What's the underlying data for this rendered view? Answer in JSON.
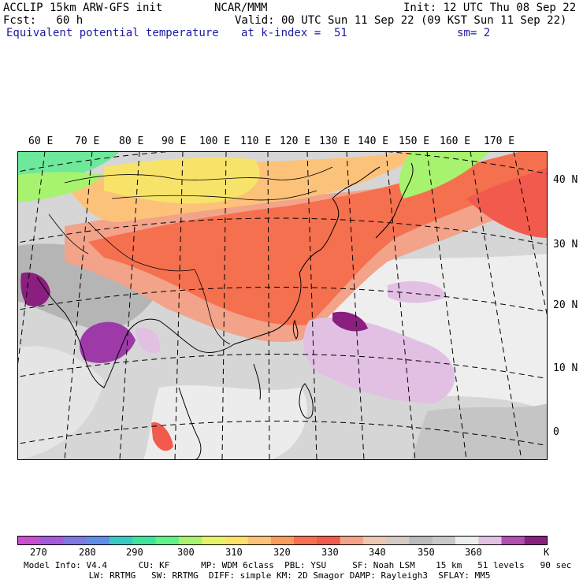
{
  "header": {
    "line1_left": "ACCLIP 15km ARW-GFS init",
    "line1_center": "NCAR/MMM",
    "line1_right": "Init: 12 UTC Thu 08 Sep 22",
    "line2_left": "Fcst:   60 h",
    "line2_right": "Valid: 00 UTC Sun 11 Sep 22 (09 KST Sun 11 Sep 22)",
    "line3_left": "Equivalent potential temperature",
    "line3_center": "at k-index =  51",
    "line3_right": "sm= 2"
  },
  "map": {
    "lon_labels": [
      "60 E",
      "70 E",
      "80 E",
      "90 E",
      "100 E",
      "110 E",
      "120 E",
      "130 E",
      "140 E",
      "150 E",
      "160 E",
      "170 E"
    ],
    "lat_labels": [
      "40 N",
      "30 N",
      "20 N",
      "10 N",
      "0"
    ]
  },
  "colorbar": {
    "colors": [
      "#c94fd0",
      "#a35bd8",
      "#7f78e0",
      "#5f8ee8",
      "#39c9c2",
      "#3fe39b",
      "#61f08a",
      "#a7f36f",
      "#e6f26a",
      "#fbe26b",
      "#fcc27a",
      "#f99b5b",
      "#f5704e",
      "#f15a4d",
      "#f2a389",
      "#ecc7b2",
      "#d6cbc4",
      "#bbbbbb",
      "#c9c9c9",
      "#eeeeee",
      "#e2c0e4",
      "#b14fb0",
      "#8a1f7f"
    ],
    "labels": [
      "270",
      "280",
      "290",
      "300",
      "310",
      "320",
      "330",
      "340",
      "350",
      "360"
    ],
    "unit": "K"
  },
  "footer": {
    "line1": "Model Info: V4.4      CU: KF      MP: WDM 6class  PBL: YSU     SF: Noah LSM    15 km   51 levels   90 sec",
    "line2": "                 LW: RRTMG   SW: RRTMG  DIFF: simple KM: 2D Smagor DAMP: Rayleigh3  SFLAY: MM5"
  }
}
